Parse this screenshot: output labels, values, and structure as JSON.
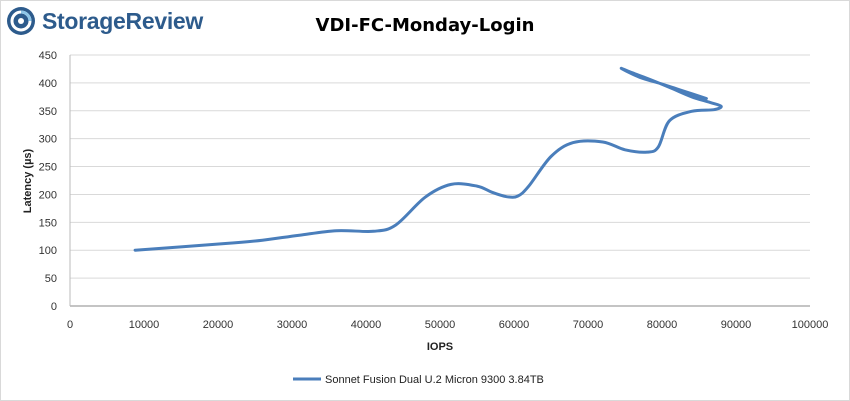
{
  "brand": {
    "name": "StorageReview"
  },
  "chart_data": {
    "type": "line",
    "title": "VDI-FC-Monday-Login",
    "xlabel": "IOPS",
    "ylabel": "Latency (µs)",
    "xlim": [
      0,
      100000
    ],
    "ylim": [
      0,
      450
    ],
    "xticks": [
      0,
      10000,
      20000,
      30000,
      40000,
      50000,
      60000,
      70000,
      80000,
      90000,
      100000
    ],
    "yticks": [
      0,
      50,
      100,
      150,
      200,
      250,
      300,
      350,
      400,
      450
    ],
    "grid": "horizontal",
    "legend": "bottom",
    "series": [
      {
        "name": "Sonnet Fusion Dual U.2 Micron 9300 3.84TB",
        "color": "#4a7ebb",
        "x": [
          8800,
          21000,
          26000,
          31000,
          36000,
          41000,
          44000,
          48000,
          51500,
          55000,
          57000,
          59000,
          60500,
          62000,
          65000,
          68000,
          72000,
          75000,
          78000,
          79500,
          81000,
          84000,
          87000,
          88000,
          86500,
          84000,
          81000,
          78000,
          76000,
          74500,
          77000,
          80000,
          83000,
          86000
        ],
        "y": [
          100,
          112,
          118,
          127,
          135,
          134,
          145,
          195,
          218,
          215,
          204,
          196,
          197,
          215,
          268,
          293,
          294,
          280,
          276,
          285,
          332,
          349,
          352,
          358,
          365,
          375,
          392,
          408,
          418,
          426,
          410,
          398,
          385,
          372
        ]
      }
    ]
  }
}
